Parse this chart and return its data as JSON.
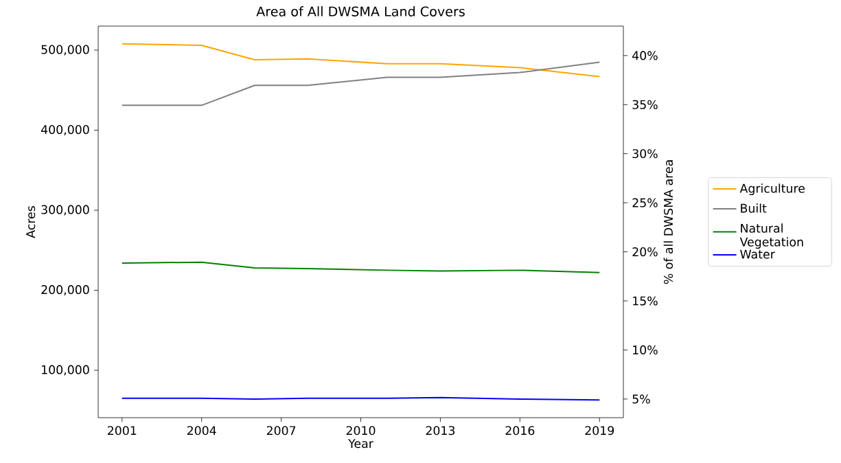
{
  "chart_data": {
    "type": "line",
    "title": "Area of All DWSMA Land Covers",
    "xlabel": "Year",
    "ylabel": "Acres",
    "y2label": "% of all DWSMA area",
    "x": [
      2001,
      2004,
      2006,
      2008,
      2011,
      2013,
      2016,
      2019
    ],
    "series": [
      {
        "name": "Agriculture",
        "color": "#ffa500",
        "values": [
          508000,
          506000,
          488000,
          489000,
          483000,
          483000,
          478000,
          467000
        ]
      },
      {
        "name": "Built",
        "color": "#808080",
        "values": [
          431000,
          431000,
          456000,
          456000,
          466000,
          466000,
          472000,
          485000
        ]
      },
      {
        "name": "Natural Vegetation",
        "color": "#008000",
        "values": [
          234000,
          235000,
          228000,
          227000,
          225000,
          224000,
          225000,
          222000
        ]
      },
      {
        "name": "Water",
        "color": "#0000ff",
        "values": [
          65000,
          65000,
          64000,
          65000,
          65000,
          66000,
          64000,
          63000
        ]
      }
    ],
    "xlim": [
      2000.1,
      2019.9
    ],
    "xticks": [
      2001,
      2004,
      2007,
      2010,
      2013,
      2016,
      2019
    ],
    "ylim": [
      40800,
      530000
    ],
    "yticks": [
      {
        "value": 100000,
        "label": "100,000"
      },
      {
        "value": 200000,
        "label": "200,000"
      },
      {
        "value": 300000,
        "label": "300,000"
      },
      {
        "value": 400000,
        "label": "400,000"
      },
      {
        "value": 500000,
        "label": "500,000"
      }
    ],
    "y2lim": [
      3.1,
      43.0
    ],
    "y2ticks": [
      {
        "value": 5,
        "label": "5%"
      },
      {
        "value": 10,
        "label": "10%"
      },
      {
        "value": 15,
        "label": "15%"
      },
      {
        "value": 20,
        "label": "20%"
      },
      {
        "value": 25,
        "label": "25%"
      },
      {
        "value": 30,
        "label": "30%"
      },
      {
        "value": 35,
        "label": "35%"
      },
      {
        "value": 40,
        "label": "40%"
      }
    ],
    "legend": "right",
    "grid": false,
    "marker": "none",
    "line_style": "solid"
  }
}
